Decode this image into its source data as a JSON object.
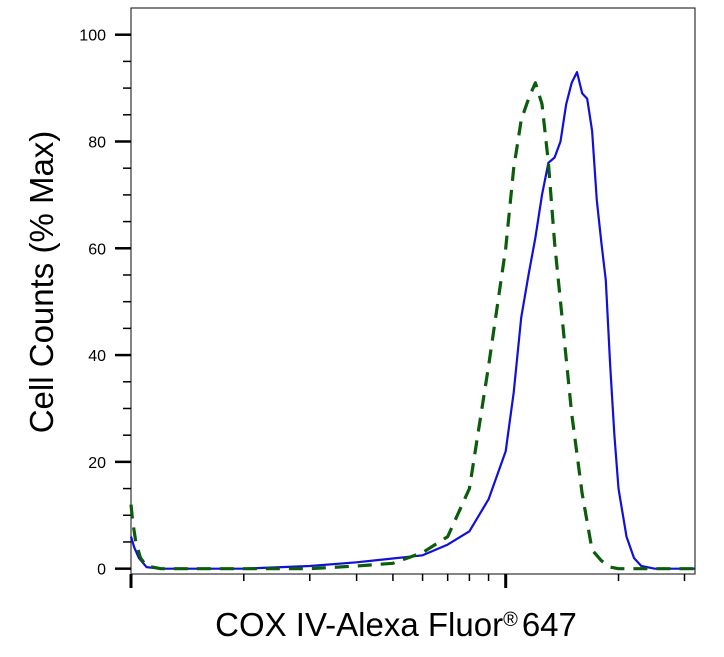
{
  "chart_data": {
    "type": "line",
    "title": "",
    "xlabel": "COX IV-Alexa Fluor",
    "xlabel_mark": "®",
    "xlabel_suffix": "647",
    "ylabel": "Cell Counts (% Max)",
    "x_scale": "log",
    "xlim": [
      0.1,
      3.2
    ],
    "ylim": [
      -1,
      105
    ],
    "grid": false,
    "legend": "none",
    "y_ticks": [
      0,
      20,
      40,
      60,
      80,
      100
    ],
    "y_tick_labels": [
      "0",
      "20",
      "40",
      "60",
      "80",
      "100"
    ],
    "series": [
      {
        "color": "#1010d8",
        "dash": "solid",
        "x": [
          0.1,
          0.102,
          0.105,
          0.11,
          0.12,
          0.15,
          0.2,
          0.3,
          0.4,
          0.6,
          0.7,
          0.8,
          0.9,
          1.0,
          1.05,
          1.1,
          1.15,
          1.2,
          1.25,
          1.3,
          1.35,
          1.4,
          1.45,
          1.5,
          1.55,
          1.6,
          1.65,
          1.7,
          1.75,
          1.8,
          1.85,
          1.9,
          1.95,
          2.0,
          2.1,
          2.2,
          2.3,
          2.5,
          3.0,
          3.2
        ],
        "y": [
          6,
          4,
          2,
          0.3,
          0,
          0,
          0,
          0.5,
          1.2,
          2.5,
          4.5,
          7,
          13,
          22,
          33,
          47,
          55,
          62,
          70,
          76,
          77,
          80,
          87,
          91,
          93,
          89,
          88,
          82,
          69,
          61,
          54,
          38,
          25,
          15,
          6,
          2,
          0.5,
          0,
          0,
          0
        ]
      },
      {
        "color": "#0b5c0b",
        "dash": "dashed",
        "x": [
          0.1,
          0.101,
          0.103,
          0.106,
          0.11,
          0.12,
          0.15,
          0.2,
          0.3,
          0.4,
          0.5,
          0.6,
          0.7,
          0.8,
          0.9,
          1.0,
          1.05,
          1.1,
          1.15,
          1.2,
          1.25,
          1.3,
          1.35,
          1.4,
          1.5,
          1.6,
          1.7,
          1.8,
          1.9,
          2.0,
          2.3,
          3.2
        ],
        "y": [
          12,
          9,
          5,
          2,
          0.5,
          0,
          0,
          0,
          0,
          0.5,
          1,
          3,
          6,
          15,
          38,
          60,
          75,
          84,
          88,
          91,
          87,
          76,
          61,
          50,
          29,
          14,
          3.5,
          1.5,
          0.3,
          0,
          0,
          0
        ]
      }
    ]
  }
}
